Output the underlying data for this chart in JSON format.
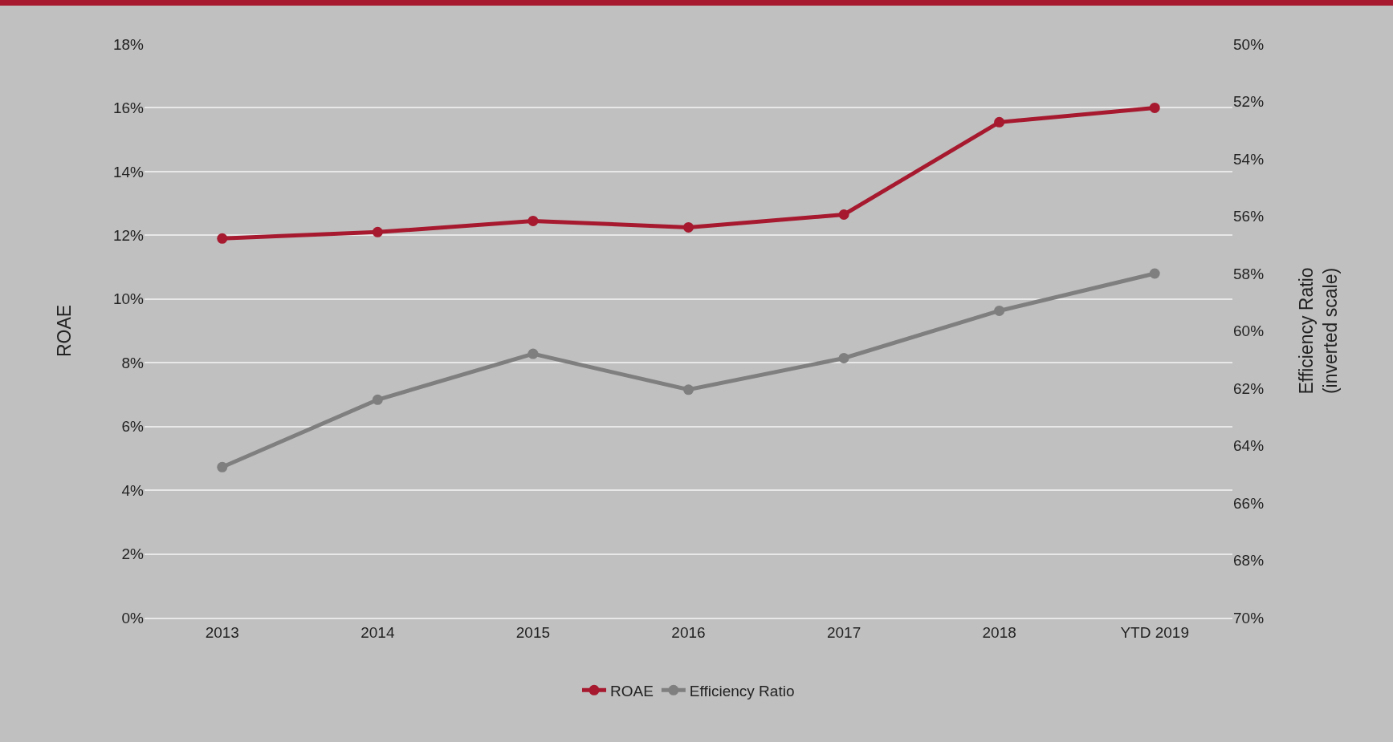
{
  "chart_data": {
    "type": "line",
    "categories": [
      "2013",
      "2014",
      "2015",
      "2016",
      "2017",
      "2018",
      "YTD 2019"
    ],
    "ylabel": "ROAE",
    "y2label": "Efficiency Ratio\n(inverted scale)",
    "series": [
      {
        "name": "ROAE",
        "color": "#a6192e",
        "values": [
          11.9,
          12.1,
          12.45,
          12.25,
          12.65,
          15.55,
          16.0
        ]
      },
      {
        "name": "Efficiency Ratio",
        "color": "#7f7f7f",
        "axis": "y2",
        "values": [
          64.75,
          62.4,
          60.8,
          62.05,
          60.95,
          59.3,
          58.0
        ]
      }
    ],
    "ylim": [
      0,
      18
    ],
    "yticks": [
      {
        "value": 0,
        "label": "0%"
      },
      {
        "value": 2,
        "label": "2%"
      },
      {
        "value": 4,
        "label": "4%"
      },
      {
        "value": 6,
        "label": "6%"
      },
      {
        "value": 8,
        "label": "8%"
      },
      {
        "value": 10,
        "label": "10%"
      },
      {
        "value": 12,
        "label": "12%"
      },
      {
        "value": 14,
        "label": "14%"
      },
      {
        "value": 16,
        "label": "16%"
      },
      {
        "value": 18,
        "label": "18%"
      }
    ],
    "y2lim": [
      70,
      50
    ],
    "y2ticks": [
      {
        "value": 50,
        "label": "50%"
      },
      {
        "value": 52,
        "label": "52%"
      },
      {
        "value": 54,
        "label": "54%"
      },
      {
        "value": 56,
        "label": "56%"
      },
      {
        "value": 58,
        "label": "58%"
      },
      {
        "value": 60,
        "label": "60%"
      },
      {
        "value": 62,
        "label": "62%"
      },
      {
        "value": 64,
        "label": "64%"
      },
      {
        "value": 66,
        "label": "66%"
      },
      {
        "value": 68,
        "label": "68%"
      },
      {
        "value": 70,
        "label": "70%"
      }
    ],
    "grid": "y",
    "legend": "bottom",
    "marker": "circle",
    "line_style": "solid"
  }
}
